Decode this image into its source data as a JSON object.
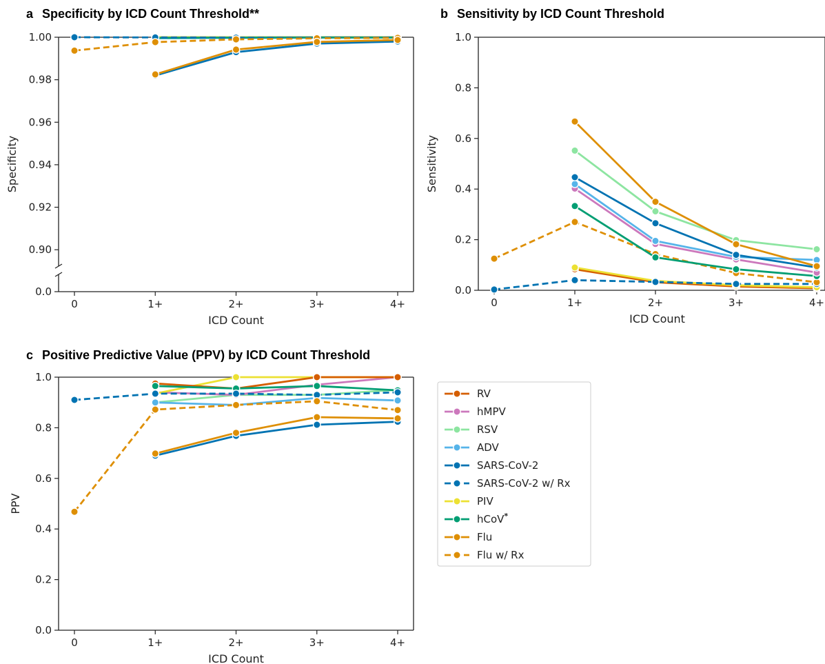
{
  "colors": {
    "RV": "#d55e00",
    "hMPV": "#cc78bc",
    "RSV": "#8de5a1",
    "ADV": "#56b4e9",
    "SARS-CoV-2": "#0173b2",
    "PIV": "#ece133",
    "hCoV": "#029e73",
    "Flu": "#de8f05"
  },
  "legend": {
    "items": [
      {
        "label": "RV",
        "color_key": "RV",
        "dashed": false
      },
      {
        "label": "hMPV",
        "color_key": "hMPV",
        "dashed": false
      },
      {
        "label": "RSV",
        "color_key": "RSV",
        "dashed": false
      },
      {
        "label": "ADV",
        "color_key": "ADV",
        "dashed": false
      },
      {
        "label": "SARS-CoV-2",
        "color_key": "SARS-CoV-2",
        "dashed": false
      },
      {
        "label": "SARS-CoV-2 w/ Rx",
        "color_key": "SARS-CoV-2",
        "dashed": true
      },
      {
        "label": "PIV",
        "color_key": "PIV",
        "dashed": false
      },
      {
        "label": "hCoV*",
        "color_key": "hCoV",
        "dashed": false
      },
      {
        "label": "Flu",
        "color_key": "Flu",
        "dashed": false
      },
      {
        "label": "Flu w/ Rx",
        "color_key": "Flu",
        "dashed": true
      }
    ]
  },
  "chart_data": [
    {
      "id": "a",
      "type": "line",
      "panel_letter": "a",
      "title": "Specificity by ICD Count Threshold**",
      "xlabel": "ICD Count",
      "ylabel": "Specificity",
      "categories": [
        "0",
        "1+",
        "2+",
        "3+",
        "4+"
      ],
      "y_axis_break": true,
      "ylim": [
        0.89,
        1.0
      ],
      "yticks": [
        "0.0",
        "0.90",
        "0.92",
        "0.94",
        "0.96",
        "0.98",
        "1.00"
      ],
      "series": [
        {
          "name": "RV",
          "dashed": false,
          "values": [
            null,
            1.0,
            1.0,
            1.0,
            1.0
          ]
        },
        {
          "name": "hMPV",
          "dashed": false,
          "values": [
            null,
            1.0,
            1.0,
            1.0,
            1.0
          ]
        },
        {
          "name": "RSV",
          "dashed": false,
          "values": [
            null,
            0.9995,
            0.9997,
            0.9998,
            0.9999
          ]
        },
        {
          "name": "ADV",
          "dashed": false,
          "values": [
            null,
            0.9995,
            0.9997,
            0.9998,
            0.9999
          ]
        },
        {
          "name": "PIV",
          "dashed": false,
          "values": [
            null,
            1.0,
            1.0,
            1.0,
            1.0
          ]
        },
        {
          "name": "hCoV*",
          "dashed": false,
          "values": [
            null,
            0.9997,
            0.9998,
            0.9999,
            0.9999
          ]
        },
        {
          "name": "SARS-CoV-2 w/ Rx",
          "dashed": true,
          "values": [
            1.0,
            0.9999,
            0.9998,
            0.9998,
            0.9999
          ]
        },
        {
          "name": "Flu w/ Rx",
          "dashed": true,
          "values": [
            0.9937,
            0.9977,
            0.999,
            0.9995,
            0.9997
          ]
        },
        {
          "name": "SARS-CoV-2",
          "dashed": false,
          "values": [
            null,
            0.982,
            0.993,
            0.997,
            0.998
          ]
        },
        {
          "name": "Flu",
          "dashed": false,
          "values": [
            null,
            0.9825,
            0.9942,
            0.9978,
            0.9987
          ]
        }
      ]
    },
    {
      "id": "b",
      "type": "line",
      "panel_letter": "b",
      "title": "Sensitivity by ICD Count Threshold",
      "xlabel": "ICD Count",
      "ylabel": "Sensitivity",
      "categories": [
        "0",
        "1+",
        "2+",
        "3+",
        "4+"
      ],
      "ylim": [
        0.0,
        1.0
      ],
      "yticks": [
        "0.0",
        "0.2",
        "0.4",
        "0.6",
        "0.8",
        "1.0"
      ],
      "series": [
        {
          "name": "RV",
          "dashed": false,
          "values": [
            null,
            0.083,
            0.032,
            0.015,
            0.008
          ]
        },
        {
          "name": "PIV",
          "dashed": false,
          "values": [
            null,
            0.09,
            0.037,
            0.02,
            0.012
          ]
        },
        {
          "name": "SARS-CoV-2 w/ Rx",
          "dashed": true,
          "values": [
            0.003,
            0.04,
            0.033,
            0.025,
            0.025
          ]
        },
        {
          "name": "Flu w/ Rx",
          "dashed": true,
          "values": [
            0.125,
            0.27,
            0.143,
            0.068,
            0.032
          ]
        },
        {
          "name": "hCoV*",
          "dashed": false,
          "values": [
            null,
            0.333,
            0.13,
            0.083,
            0.056
          ]
        },
        {
          "name": "hMPV",
          "dashed": false,
          "values": [
            null,
            0.402,
            0.183,
            0.122,
            0.07
          ]
        },
        {
          "name": "ADV",
          "dashed": false,
          "values": [
            null,
            0.42,
            0.195,
            0.132,
            0.12
          ]
        },
        {
          "name": "SARS-CoV-2",
          "dashed": false,
          "values": [
            null,
            0.447,
            0.265,
            0.14,
            0.09
          ]
        },
        {
          "name": "RSV",
          "dashed": false,
          "values": [
            null,
            0.552,
            0.312,
            0.198,
            0.162
          ]
        },
        {
          "name": "Flu",
          "dashed": false,
          "values": [
            null,
            0.667,
            0.35,
            0.182,
            0.095
          ]
        }
      ]
    },
    {
      "id": "c",
      "type": "line",
      "panel_letter": "c",
      "title": "Positive Predictive Value (PPV) by ICD Count Threshold",
      "xlabel": "ICD Count",
      "ylabel": "PPV",
      "categories": [
        "0",
        "1+",
        "2+",
        "3+",
        "4+"
      ],
      "ylim": [
        0.0,
        1.0
      ],
      "yticks": [
        "0.0",
        "0.2",
        "0.4",
        "0.6",
        "0.8",
        "1.0"
      ],
      "series": [
        {
          "name": "RSV",
          "dashed": false,
          "values": [
            null,
            0.9,
            0.93,
            0.93,
            0.95
          ]
        },
        {
          "name": "ADV",
          "dashed": false,
          "values": [
            null,
            0.9,
            0.89,
            0.918,
            0.908
          ]
        },
        {
          "name": "hMPV",
          "dashed": false,
          "values": [
            null,
            0.94,
            0.93,
            0.97,
            1.0
          ]
        },
        {
          "name": "PIV",
          "dashed": false,
          "values": [
            null,
            0.935,
            1.0,
            1.0,
            1.0
          ]
        },
        {
          "name": "RV",
          "dashed": false,
          "values": [
            null,
            0.975,
            0.955,
            1.0,
            1.0
          ]
        },
        {
          "name": "hCoV*",
          "dashed": false,
          "values": [
            null,
            0.965,
            0.955,
            0.965,
            0.948
          ]
        },
        {
          "name": "SARS-CoV-2 w/ Rx",
          "dashed": true,
          "values": [
            0.91,
            0.935,
            0.935,
            0.93,
            0.94
          ]
        },
        {
          "name": "Flu w/ Rx",
          "dashed": true,
          "values": [
            0.468,
            0.872,
            0.89,
            0.905,
            0.87
          ]
        },
        {
          "name": "SARS-CoV-2",
          "dashed": false,
          "values": [
            null,
            0.69,
            0.768,
            0.812,
            0.824
          ]
        },
        {
          "name": "Flu",
          "dashed": false,
          "values": [
            null,
            0.698,
            0.78,
            0.842,
            0.837
          ]
        }
      ]
    }
  ]
}
